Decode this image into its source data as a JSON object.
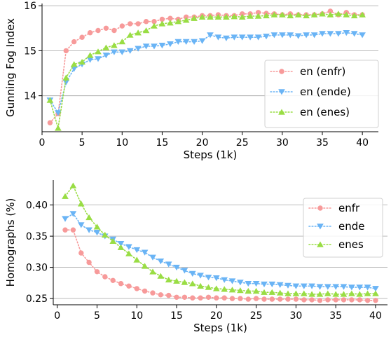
{
  "chart_data": [
    {
      "type": "line",
      "xlabel": "Steps (1k)",
      "ylabel": "Gunning Fog Index",
      "xlim": [
        0,
        42
      ],
      "ylim": [
        13.2,
        16.05
      ],
      "xticks": [
        0,
        5,
        10,
        15,
        20,
        25,
        30,
        35,
        40
      ],
      "yticks": [
        14,
        15,
        16
      ],
      "grid": "horizontal",
      "legend_position": "right",
      "x": [
        1,
        2,
        3,
        4,
        5,
        6,
        7,
        8,
        9,
        10,
        11,
        12,
        13,
        14,
        15,
        16,
        17,
        18,
        19,
        20,
        21,
        22,
        23,
        24,
        25,
        26,
        27,
        28,
        29,
        30,
        31,
        32,
        33,
        34,
        35,
        36,
        37,
        38,
        39,
        40
      ],
      "series": [
        {
          "name": "en (enfr)",
          "color": "#f79a9a",
          "marker": "circle",
          "values": [
            13.4,
            13.6,
            15.0,
            15.2,
            15.3,
            15.4,
            15.45,
            15.5,
            15.45,
            15.55,
            15.6,
            15.6,
            15.65,
            15.65,
            15.7,
            15.72,
            15.7,
            15.75,
            15.75,
            15.78,
            15.78,
            15.8,
            15.78,
            15.78,
            15.82,
            15.82,
            15.85,
            15.83,
            15.82,
            15.8,
            15.82,
            15.8,
            15.8,
            15.8,
            15.82,
            15.88,
            15.8,
            15.85,
            15.8,
            15.8
          ]
        },
        {
          "name": "en (ende)",
          "color": "#6ab4f5",
          "marker": "triangle-down",
          "values": [
            13.9,
            13.62,
            14.3,
            14.6,
            14.7,
            14.8,
            14.82,
            14.9,
            14.97,
            14.97,
            15.0,
            15.05,
            15.1,
            15.1,
            15.12,
            15.15,
            15.2,
            15.2,
            15.2,
            15.22,
            15.35,
            15.3,
            15.28,
            15.3,
            15.3,
            15.3,
            15.3,
            15.32,
            15.35,
            15.35,
            15.35,
            15.33,
            15.35,
            15.35,
            15.38,
            15.38,
            15.38,
            15.4,
            15.38,
            15.35
          ]
        },
        {
          "name": "en (enes)",
          "color": "#99dd44",
          "marker": "triangle-up",
          "values": [
            13.9,
            13.28,
            14.4,
            14.7,
            14.75,
            14.9,
            14.98,
            15.07,
            15.12,
            15.2,
            15.35,
            15.4,
            15.45,
            15.55,
            15.6,
            15.62,
            15.65,
            15.68,
            15.72,
            15.75,
            15.75,
            15.75,
            15.75,
            15.76,
            15.75,
            15.77,
            15.77,
            15.78,
            15.8,
            15.8,
            15.78,
            15.8,
            15.78,
            15.8,
            15.82,
            15.8,
            15.82,
            15.8,
            15.78,
            15.8
          ]
        }
      ]
    },
    {
      "type": "line",
      "xlabel": "Steps (1k)",
      "ylabel": "Homographs (%)",
      "xlim": [
        -0.5,
        41.5
      ],
      "ylim": [
        0.24,
        0.44
      ],
      "xticks": [
        0,
        5,
        10,
        15,
        20,
        25,
        30,
        35,
        40
      ],
      "yticks": [
        0.25,
        0.3,
        0.35,
        0.4
      ],
      "ytick_labels": [
        "0.25",
        "0.30",
        "0.35",
        "0.40"
      ],
      "grid": "horizontal",
      "legend_position": "top-right",
      "x": [
        1,
        2,
        3,
        4,
        5,
        6,
        7,
        8,
        9,
        10,
        11,
        12,
        13,
        14,
        15,
        16,
        17,
        18,
        19,
        20,
        21,
        22,
        23,
        24,
        25,
        26,
        27,
        28,
        29,
        30,
        31,
        32,
        33,
        34,
        35,
        36,
        37,
        38,
        39,
        40
      ],
      "series": [
        {
          "name": "enfr",
          "color": "#f79a9a",
          "marker": "circle",
          "values": [
            0.36,
            0.36,
            0.323,
            0.308,
            0.293,
            0.285,
            0.279,
            0.274,
            0.27,
            0.266,
            0.262,
            0.259,
            0.256,
            0.255,
            0.252,
            0.252,
            0.251,
            0.251,
            0.252,
            0.251,
            0.251,
            0.25,
            0.25,
            0.249,
            0.25,
            0.249,
            0.249,
            0.249,
            0.249,
            0.249,
            0.248,
            0.248,
            0.247,
            0.248,
            0.248,
            0.248,
            0.248,
            0.248,
            0.247,
            0.247
          ]
        },
        {
          "name": "ende",
          "color": "#6ab4f5",
          "marker": "triangle-down",
          "values": [
            0.378,
            0.386,
            0.368,
            0.36,
            0.356,
            0.35,
            0.345,
            0.338,
            0.333,
            0.328,
            0.324,
            0.316,
            0.31,
            0.305,
            0.3,
            0.295,
            0.29,
            0.287,
            0.284,
            0.283,
            0.28,
            0.278,
            0.276,
            0.274,
            0.274,
            0.273,
            0.273,
            0.272,
            0.271,
            0.27,
            0.27,
            0.27,
            0.269,
            0.269,
            0.269,
            0.269,
            0.268,
            0.268,
            0.268,
            0.266
          ]
        },
        {
          "name": "enes",
          "color": "#99dd44",
          "marker": "triangle-up",
          "values": [
            0.414,
            0.431,
            0.402,
            0.38,
            0.365,
            0.352,
            0.342,
            0.332,
            0.322,
            0.312,
            0.302,
            0.293,
            0.286,
            0.28,
            0.278,
            0.276,
            0.274,
            0.27,
            0.268,
            0.266,
            0.265,
            0.264,
            0.263,
            0.262,
            0.262,
            0.26,
            0.26,
            0.259,
            0.258,
            0.258,
            0.258,
            0.257,
            0.257,
            0.258,
            0.257,
            0.257,
            0.258,
            0.257,
            0.258,
            0.258
          ]
        }
      ]
    }
  ]
}
